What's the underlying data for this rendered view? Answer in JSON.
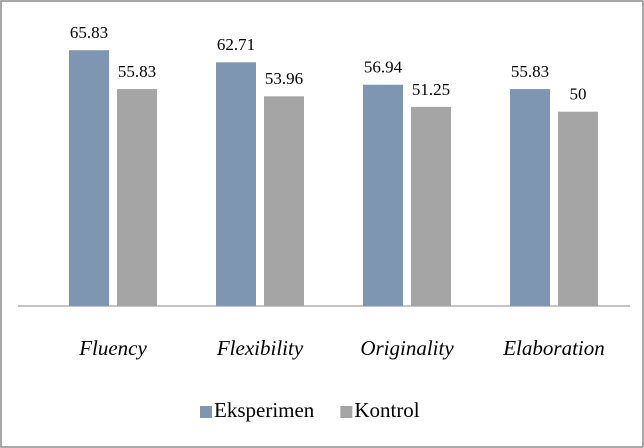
{
  "chart_data": {
    "type": "bar",
    "categories": [
      "Fluency",
      "Flexibility",
      "Originality",
      "Elaboration"
    ],
    "series": [
      {
        "name": "Eksperimen",
        "color": "#7f96b2",
        "values": [
          65.83,
          62.71,
          56.94,
          55.83
        ]
      },
      {
        "name": "Kontrol",
        "color": "#a5a5a5",
        "values": [
          55.83,
          53.96,
          51.25,
          50
        ]
      }
    ],
    "ylim": [
      0,
      70
    ],
    "legend": "bottom"
  }
}
